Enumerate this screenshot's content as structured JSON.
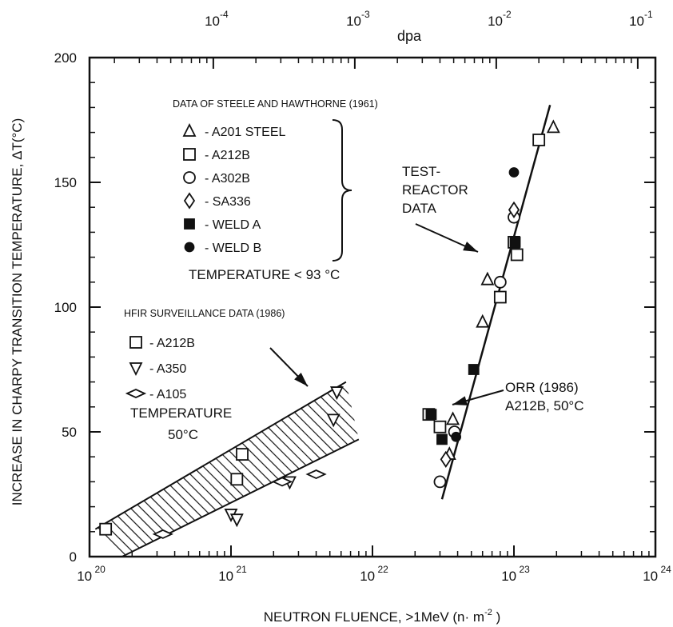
{
  "chart_data": {
    "type": "scatter",
    "xlabel": "NEUTRON FLUENCE,   >1MeV (n· m",
    "xlabel_sup": "-2",
    "xlabel_end": " )",
    "ylabel": "INCREASE IN CHARPY TRANSITION TEMPERATURE,  ΔT(°C)",
    "top_axis_label": "dpa",
    "x_scale": "log",
    "xlim": [
      1e+20,
      1e+24
    ],
    "ylim": [
      0,
      200
    ],
    "x_ticks": [
      {
        "base": "10",
        "exp": "20",
        "value": 1e+20
      },
      {
        "base": "10",
        "exp": "21",
        "value": 1e+21
      },
      {
        "base": "10",
        "exp": "22",
        "value": 1e+22
      },
      {
        "base": "10",
        "exp": "23",
        "value": 1e+23
      },
      {
        "base": "10",
        "exp": "24",
        "value": 1e+24
      }
    ],
    "y_ticks": [
      {
        "label": "0",
        "value": 0
      },
      {
        "label": "50",
        "value": 50
      },
      {
        "label": "100",
        "value": 100
      },
      {
        "label": "150",
        "value": 150
      },
      {
        "label": "200",
        "value": 200
      }
    ],
    "top_ticks": [
      {
        "base": "10",
        "exp": "-4",
        "fluence": 7.5e+20
      },
      {
        "base": "10",
        "exp": "-3",
        "fluence": 7.5e+21
      },
      {
        "base": "10",
        "exp": "-2",
        "fluence": 7.5e+22
      },
      {
        "base": "10",
        "exp": "-1",
        "fluence": 7.5e+23
      }
    ],
    "legend_test": {
      "title": "DATA OF STEELE AND HAWTHORNE (1961)",
      "entries": [
        {
          "marker": "triangle-up",
          "label": "- A201 STEEL"
        },
        {
          "marker": "square",
          "label": "- A212B"
        },
        {
          "marker": "circle",
          "label": "- A302B"
        },
        {
          "marker": "diamond",
          "label": "- SA336"
        },
        {
          "marker": "filled-square",
          "label": "- WELD A"
        },
        {
          "marker": "filled-circle",
          "label": "- WELD B"
        }
      ],
      "temperature": "TEMPERATURE  < 93 °C"
    },
    "legend_hfir": {
      "title": "HFIR SURVEILLANCE DATA (1986)",
      "entries": [
        {
          "marker": "square",
          "label": "- A212B"
        },
        {
          "marker": "triangle-down",
          "label": "- A350"
        },
        {
          "marker": "diamond-wide",
          "label": "- A105"
        }
      ],
      "temperature_line1": "TEMPERATURE",
      "temperature_line2": "50°C"
    },
    "annotations": {
      "test_reactor": [
        "TEST-",
        "REACTOR",
        "DATA"
      ],
      "orr": [
        "ORR (1986)",
        "A212B, 50°C"
      ]
    },
    "fit_line_test_reactor": [
      [
        3.1e+22,
        23
      ],
      [
        1.8e+23,
        181
      ]
    ],
    "hfir_band": {
      "upper": [
        [
          1.1e+20,
          11
        ],
        [
          6.5e+21,
          70
        ]
      ],
      "lower": [
        [
          1.7e+20,
          0
        ],
        [
          8e+21,
          47
        ]
      ]
    },
    "series": [
      {
        "marker": "triangle-up",
        "points": [
          [
            1.9e+23,
            172
          ],
          [
            6.5e+22,
            111
          ],
          [
            6e+22,
            94
          ],
          [
            3.5e+22,
            41
          ],
          [
            3.7e+22,
            55
          ]
        ]
      },
      {
        "marker": "square",
        "points": [
          [
            1.5e+23,
            167
          ],
          [
            1.05e+23,
            121
          ],
          [
            8e+22,
            104
          ],
          [
            2.5e+22,
            57
          ],
          [
            3e+22,
            52
          ],
          [
            1e+23,
            126
          ]
        ]
      },
      {
        "marker": "circle",
        "points": [
          [
            1e+23,
            136
          ],
          [
            8e+22,
            110
          ],
          [
            3e+22,
            30
          ],
          [
            3.8e+22,
            50
          ]
        ]
      },
      {
        "marker": "diamond",
        "points": [
          [
            1e+23,
            139
          ],
          [
            3.3e+22,
            39
          ]
        ]
      },
      {
        "marker": "filled-square",
        "points": [
          [
            1.02e+23,
            126
          ],
          [
            5.2e+22,
            75
          ],
          [
            2.6e+22,
            57
          ],
          [
            3.1e+22,
            47
          ]
        ]
      },
      {
        "marker": "filled-circle",
        "points": [
          [
            1e+23,
            154
          ],
          [
            3.9e+22,
            48
          ]
        ]
      },
      {
        "marker": "square",
        "points": [
          [
            1.3e+20,
            11
          ],
          [
            1.2e+21,
            41
          ],
          [
            1.1e+21,
            31
          ]
        ]
      },
      {
        "marker": "triangle-down",
        "points": [
          [
            1e+21,
            17
          ],
          [
            1.1e+21,
            15
          ],
          [
            2.6e+21,
            30
          ],
          [
            5.3e+21,
            55
          ],
          [
            5.6e+21,
            66
          ]
        ]
      },
      {
        "marker": "diamond-wide",
        "points": [
          [
            3.3e+20,
            9
          ],
          [
            2.3e+21,
            30
          ],
          [
            4e+21,
            33
          ]
        ]
      }
    ]
  }
}
